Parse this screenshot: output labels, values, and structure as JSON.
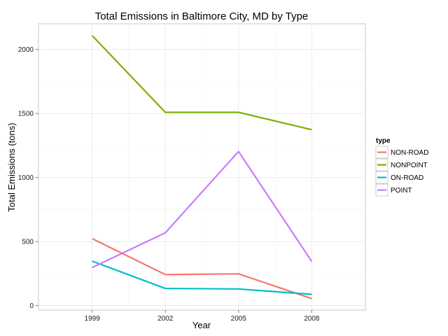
{
  "chart_data": {
    "type": "line",
    "title": "Total Emissions in Baltimore City, MD by Type",
    "xlabel": "Year",
    "ylabel": "Total Emissions (tons)",
    "x": [
      1999,
      2002,
      2005,
      2008
    ],
    "xlim": [
      1996.8,
      2010.2
    ],
    "ylim": [
      -35,
      2200
    ],
    "yticks": [
      0,
      500,
      1000,
      1500,
      2000
    ],
    "grid": true,
    "legend": {
      "title": "type",
      "placement": "right"
    },
    "series": [
      {
        "name": "NON-ROAD",
        "color": "#F8766D",
        "values": [
          523,
          242,
          248,
          55
        ]
      },
      {
        "name": "NONPOINT",
        "color": "#7CAE00",
        "values": [
          2108,
          1509,
          1509,
          1373
        ]
      },
      {
        "name": "ON-ROAD",
        "color": "#00BFC4",
        "values": [
          347,
          134,
          130,
          88
        ]
      },
      {
        "name": "POINT",
        "color": "#C77CFF",
        "values": [
          297,
          569,
          1203,
          345
        ]
      }
    ]
  }
}
